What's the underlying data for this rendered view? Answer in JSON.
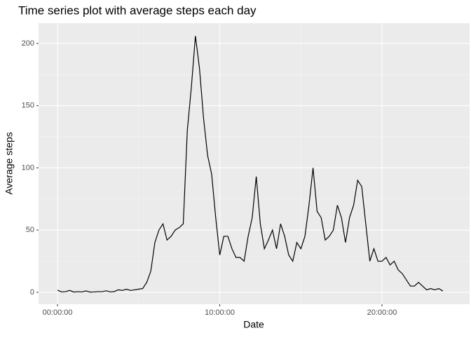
{
  "chart_data": {
    "type": "line",
    "title": "Time series plot with average steps each day",
    "x_label": "Date",
    "y_label": "Average steps",
    "x": [
      0,
      0.25,
      0.5,
      0.75,
      1,
      1.25,
      1.5,
      1.75,
      2,
      2.25,
      2.5,
      2.75,
      3,
      3.25,
      3.5,
      3.75,
      4,
      4.25,
      4.5,
      4.75,
      5,
      5.25,
      5.5,
      5.75,
      6,
      6.25,
      6.5,
      6.75,
      7,
      7.25,
      7.5,
      7.75,
      8,
      8.25,
      8.5,
      8.75,
      9,
      9.25,
      9.5,
      9.75,
      10,
      10.25,
      10.5,
      10.75,
      11,
      11.25,
      11.5,
      11.75,
      12,
      12.25,
      12.5,
      12.75,
      13,
      13.25,
      13.5,
      13.75,
      14,
      14.25,
      14.5,
      14.75,
      15,
      15.25,
      15.5,
      15.75,
      16,
      16.25,
      16.5,
      16.75,
      17,
      17.25,
      17.5,
      17.75,
      18,
      18.25,
      18.5,
      18.75,
      19,
      19.25,
      19.5,
      19.75,
      20,
      20.25,
      20.5,
      20.75,
      21,
      21.25,
      21.5,
      21.75,
      22,
      22.25,
      22.5,
      22.75,
      23,
      23.25,
      23.5,
      23.75
    ],
    "values": [
      1.7,
      0.3,
      0.5,
      1.5,
      0.2,
      0.5,
      0.3,
      1.1,
      0.2,
      0.3,
      0.5,
      0.5,
      1.2,
      0.3,
      0.6,
      2,
      1.5,
      2.5,
      1.5,
      2,
      2.5,
      3,
      8,
      17,
      40,
      50,
      55,
      42,
      45,
      50,
      52,
      55,
      130,
      165,
      206,
      180,
      140,
      110,
      95,
      60,
      30,
      45,
      45,
      35,
      28,
      28,
      25,
      45,
      60,
      93,
      55,
      35,
      42,
      50,
      35,
      55,
      45,
      30,
      25,
      40,
      35,
      45,
      70,
      100,
      65,
      60,
      42,
      45,
      50,
      70,
      60,
      40,
      60,
      70,
      90,
      85,
      55,
      25,
      35,
      25,
      25,
      28,
      22,
      25,
      18,
      15,
      10,
      5,
      5,
      8,
      5,
      2,
      3,
      2,
      3,
      1
    ],
    "color": "#000000",
    "xlim": [
      -1.17,
      25.4
    ],
    "xticks": [
      {
        "value": 0,
        "label": "00:00:00"
      },
      {
        "value": 10,
        "label": "10:00:00"
      },
      {
        "value": 20,
        "label": "20:00:00"
      }
    ],
    "ylim": [
      -9.6,
      216.3
    ],
    "yticks": [
      0,
      50,
      100,
      150,
      200
    ],
    "grid": true,
    "minor_grid": true
  }
}
